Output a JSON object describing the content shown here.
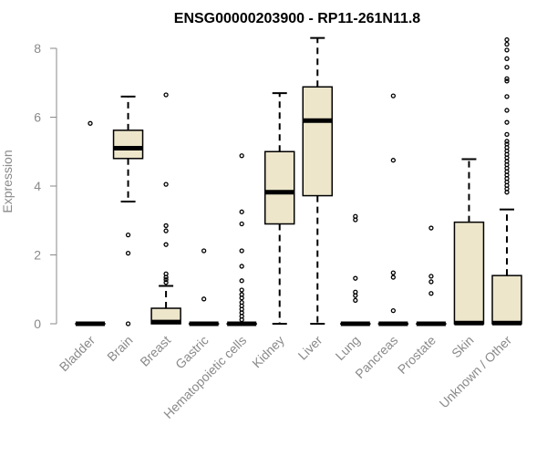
{
  "chart_data": {
    "type": "box",
    "title": "ENSG00000203900 - RP11-261N11.8",
    "xlabel": "",
    "ylabel": "Expression",
    "ylim": [
      0,
      8.4
    ],
    "yticks": [
      0,
      2,
      4,
      6,
      8
    ],
    "box_fill": "#ede6cb",
    "box_stroke": "#000000",
    "outlier_stroke": "#000000",
    "categories": [
      "Bladder",
      "Brain",
      "Breast",
      "Gastric",
      "Hematopoietic cells",
      "Kidney",
      "Liver",
      "Lung",
      "Pancreas",
      "Prostate",
      "Skin",
      "Unknown / Other"
    ],
    "boxes": [
      {
        "category": "Bladder",
        "min": 0,
        "q1": 0,
        "median": 0,
        "q3": 0,
        "max": 0,
        "outliers": [
          5.82
        ]
      },
      {
        "category": "Brain",
        "min": 3.55,
        "q1": 4.8,
        "median": 5.1,
        "q3": 5.62,
        "max": 6.6,
        "outliers": [
          2.58,
          2.05,
          0.0
        ]
      },
      {
        "category": "Breast",
        "min": 0,
        "q1": 0,
        "median": 0.05,
        "q3": 0.45,
        "max": 1.1,
        "outliers": [
          6.65,
          4.05,
          2.85,
          2.7,
          2.3,
          1.45,
          1.35,
          1.28,
          1.2
        ]
      },
      {
        "category": "Gastric",
        "min": 0,
        "q1": 0,
        "median": 0,
        "q3": 0,
        "max": 0,
        "outliers": [
          2.12,
          0.72
        ]
      },
      {
        "category": "Hematopoietic cells",
        "min": 0,
        "q1": 0,
        "median": 0,
        "q3": 0,
        "max": 0,
        "outliers": [
          4.88,
          3.25,
          2.9,
          2.12,
          1.67,
          1.25,
          0.98,
          0.85,
          0.75,
          0.62,
          0.52,
          0.42,
          0.32,
          0.22,
          0.12
        ]
      },
      {
        "category": "Kidney",
        "min": 0,
        "q1": 2.9,
        "median": 3.82,
        "q3": 5.0,
        "max": 6.7,
        "outliers": []
      },
      {
        "category": "Liver",
        "min": 0,
        "q1": 3.72,
        "median": 5.9,
        "q3": 6.88,
        "max": 8.3,
        "outliers": []
      },
      {
        "category": "Lung",
        "min": 0,
        "q1": 0,
        "median": 0,
        "q3": 0,
        "max": 0,
        "outliers": [
          3.12,
          3.02,
          1.32,
          0.92,
          0.82,
          0.68
        ]
      },
      {
        "category": "Pancreas",
        "min": 0,
        "q1": 0,
        "median": 0,
        "q3": 0,
        "max": 0,
        "outliers": [
          6.62,
          4.75,
          1.48,
          1.35,
          0.38
        ]
      },
      {
        "category": "Prostate",
        "min": 0,
        "q1": 0,
        "median": 0,
        "q3": 0,
        "max": 0,
        "outliers": [
          2.78,
          1.38,
          1.22,
          0.88
        ]
      },
      {
        "category": "Skin",
        "min": 0,
        "q1": 0,
        "median": 0.02,
        "q3": 2.95,
        "max": 4.78,
        "outliers": []
      },
      {
        "category": "Unknown / Other",
        "min": 0,
        "q1": 0,
        "median": 0.02,
        "q3": 1.4,
        "max": 3.32,
        "outliers": [
          8.25,
          8.12,
          7.95,
          7.7,
          7.45,
          7.12,
          7.05,
          6.6,
          6.2,
          5.85,
          5.5,
          5.3,
          5.22,
          5.12,
          5.02,
          4.92,
          4.82,
          4.72,
          4.62,
          4.52,
          4.42,
          4.32,
          4.22,
          4.12,
          4.02,
          3.92,
          3.82
        ]
      }
    ]
  }
}
